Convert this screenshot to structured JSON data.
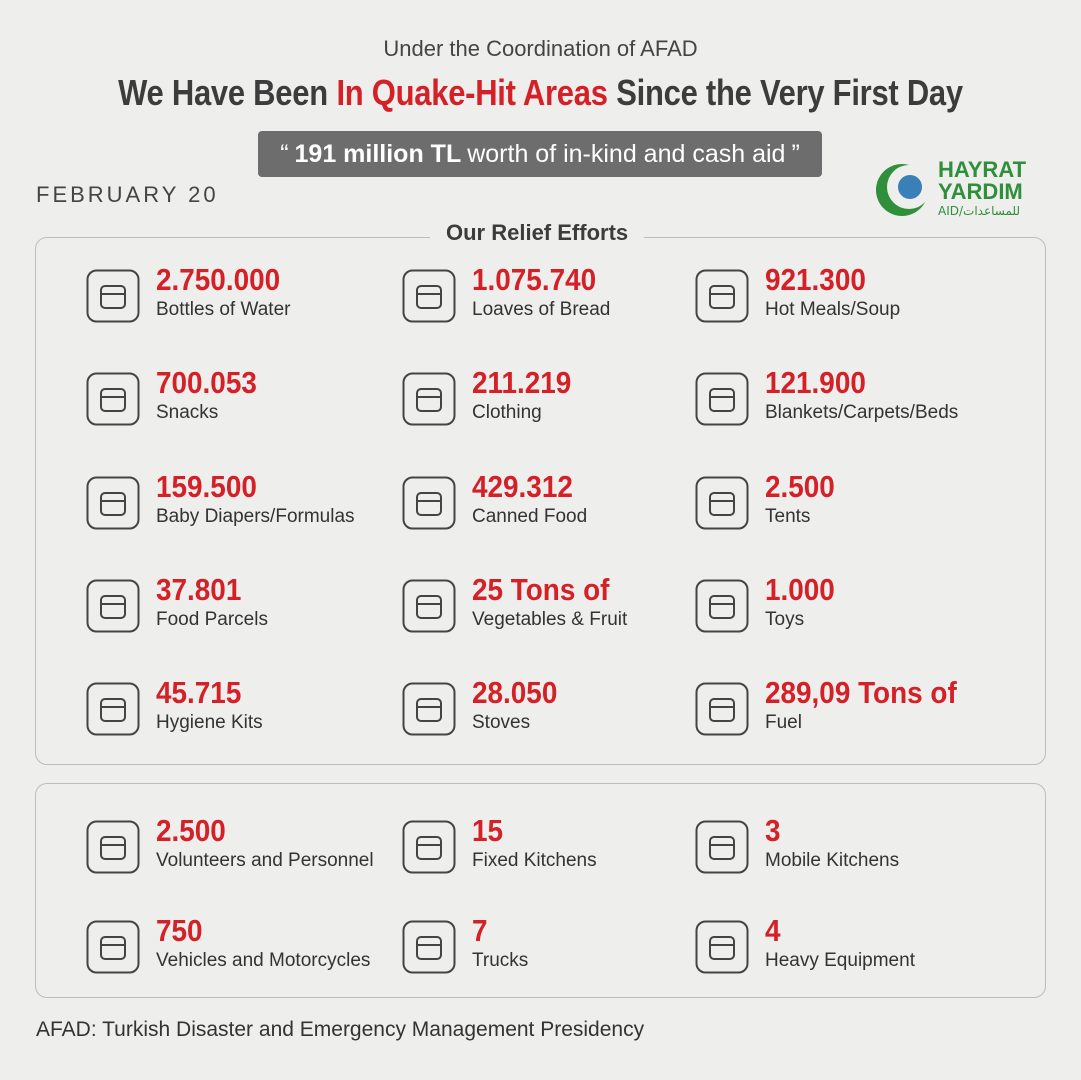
{
  "header": {
    "subtitle": "Under the Coordination of AFAD",
    "title": [
      "We Have Been",
      "In Quake-Hit Areas",
      "Since the Very First Day"
    ],
    "quote": {
      "open": "“",
      "highlight": "191 million TL",
      "text": "worth of in-kind and cash aid",
      "close": "”"
    },
    "date": "FEBRUARY 20",
    "logo": {
      "line1": "HAYRAT",
      "line2": "YARDIM",
      "line3": "AID/للمساعدات"
    }
  },
  "relief": {
    "title": "Our Relief Efforts",
    "items": [
      {
        "value": "2.750.000",
        "label": "Bottles of Water"
      },
      {
        "value": "1.075.740",
        "label": "Loaves of Bread"
      },
      {
        "value": "921.300",
        "label": "Hot Meals/Soup"
      },
      {
        "value": "700.053",
        "label": "Snacks"
      },
      {
        "value": "211.219",
        "label": "Clothing"
      },
      {
        "value": "121.900",
        "label": "Blankets/Carpets/Beds"
      },
      {
        "value": "159.500",
        "label": "Baby Diapers/Formulas"
      },
      {
        "value": "429.312",
        "label": "Canned Food"
      },
      {
        "value": "2.500",
        "label": "Tents"
      },
      {
        "value": "37.801",
        "label": "Food Parcels"
      },
      {
        "value": "25 Tons of",
        "label": "Vegetables & Fruit"
      },
      {
        "value": "1.000",
        "label": "Toys"
      },
      {
        "value": "45.715",
        "label": "Hygiene Kits"
      },
      {
        "value": "28.050",
        "label": "Stoves"
      },
      {
        "value": "289,09 Tons of",
        "label": "Fuel"
      }
    ]
  },
  "resources": {
    "items": [
      {
        "value": "2.500",
        "label": "Volunteers and Personnel"
      },
      {
        "value": "15",
        "label": "Fixed Kitchens"
      },
      {
        "value": "3",
        "label": "Mobile Kitchens"
      },
      {
        "value": "750",
        "label": "Vehicles and Motorcycles"
      },
      {
        "value": "7",
        "label": "Trucks"
      },
      {
        "value": "4",
        "label": "Heavy Equipment"
      }
    ]
  },
  "footer": "AFAD: Turkish Disaster and Emergency Management Presidency"
}
